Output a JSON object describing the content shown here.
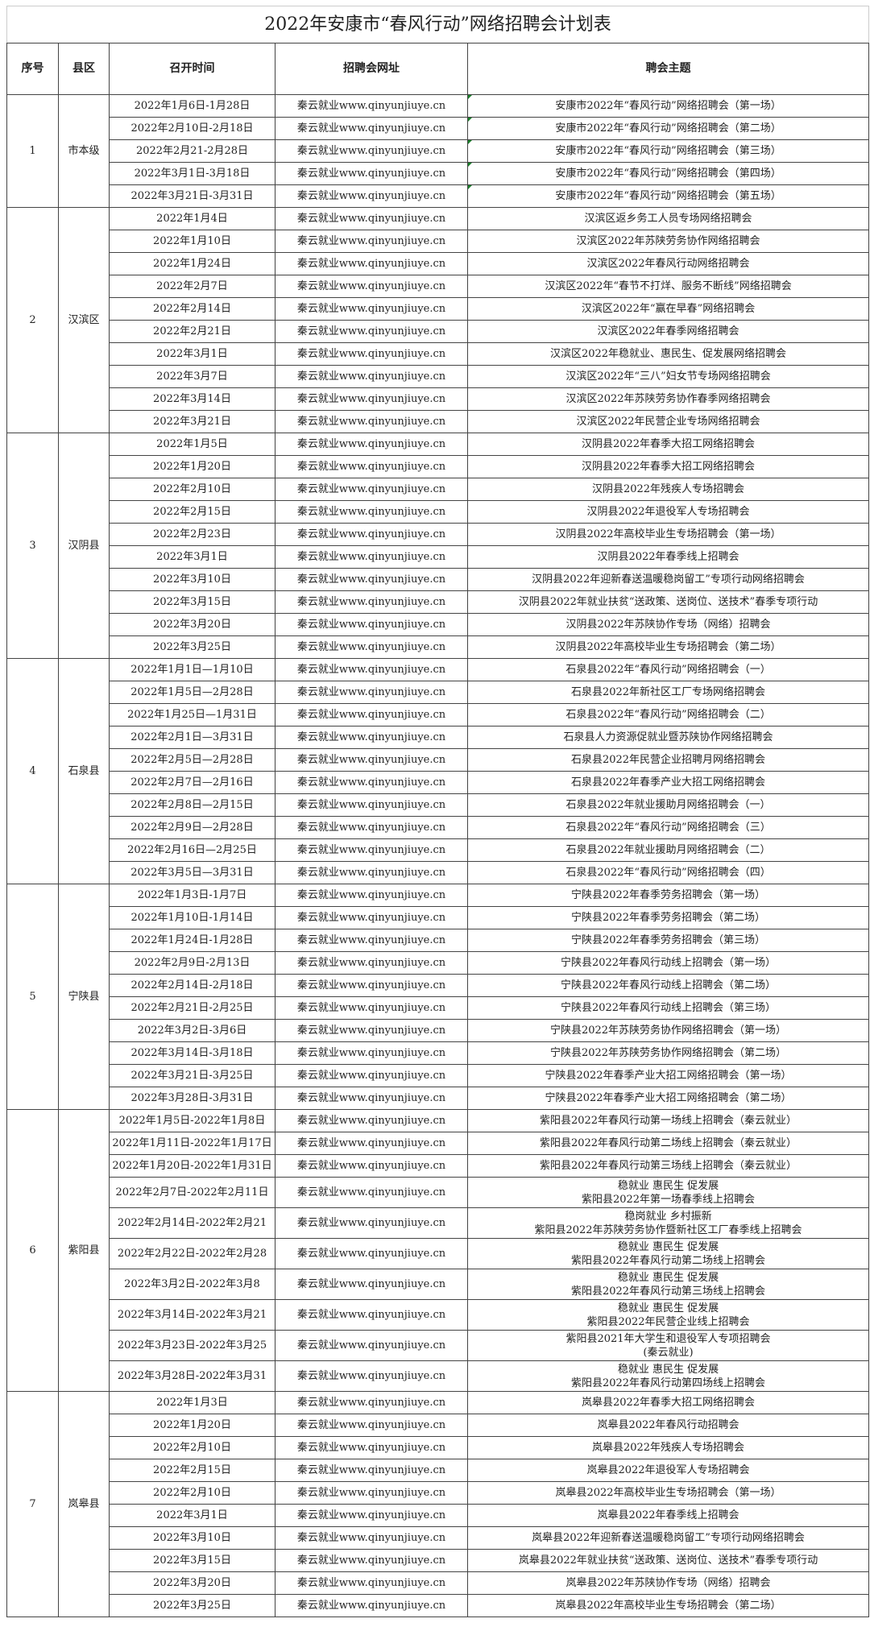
{
  "title": "2022年安康市“春风行动”网络招聘会计划表",
  "headers": [
    "序号",
    "县区",
    "召开时间",
    "招聘会网址",
    "聘会主题"
  ],
  "groups": [
    {
      "no": "1",
      "district": "市本级",
      "rows": [
        {
          "time": "2022年1月6日-1月28日",
          "site": "秦云就业www.qinyunjiuye.cn",
          "theme": [
            "安康市2022年“春风行动”网络招聘会（第一场）"
          ]
        },
        {
          "time": "2022年2月10日-2月18日",
          "site": "秦云就业www.qinyunjiuye.cn",
          "theme": [
            "安康市2022年“春风行动”网络招聘会（第二场）"
          ]
        },
        {
          "time": "2022年2月21-2月28日",
          "site": "秦云就业www.qinyunjiuye.cn",
          "theme": [
            "安康市2022年“春风行动”网络招聘会（第三场）"
          ]
        },
        {
          "time": "2022年3月1日-3月18日",
          "site": "秦云就业www.qinyunjiuye.cn",
          "theme": [
            "安康市2022年“春风行动”网络招聘会（第四场）"
          ]
        },
        {
          "time": "2022年3月21日-3月31日",
          "site": "秦云就业www.qinyunjiuye.cn",
          "theme": [
            "安康市2022年“春风行动”网络招聘会（第五场）"
          ]
        }
      ]
    },
    {
      "no": "2",
      "district": "汉滨区",
      "rows": [
        {
          "time": "2022年1月4日",
          "site": "秦云就业www.qinyunjiuye.cn",
          "theme": [
            "汉滨区返乡务工人员专场网络招聘会"
          ]
        },
        {
          "time": "2022年1月10日",
          "site": "秦云就业www.qinyunjiuye.cn",
          "theme": [
            "汉滨区2022年苏陕劳务协作网络招聘会"
          ]
        },
        {
          "time": "2022年1月24日",
          "site": "秦云就业www.qinyunjiuye.cn",
          "theme": [
            "汉滨区2022年春风行动网络招聘会"
          ]
        },
        {
          "time": "2022年2月7日",
          "site": "秦云就业www.qinyunjiuye.cn",
          "theme": [
            "汉滨区2022年“春节不打烊、服务不断线”网络招聘会"
          ]
        },
        {
          "time": "2022年2月14日",
          "site": "秦云就业www.qinyunjiuye.cn",
          "theme": [
            "汉滨区2022年“赢在早春”网络招聘会"
          ]
        },
        {
          "time": "2022年2月21日",
          "site": "秦云就业www.qinyunjiuye.cn",
          "theme": [
            "汉滨区2022年春季网络招聘会"
          ]
        },
        {
          "time": "2022年3月1日",
          "site": "秦云就业www.qinyunjiuye.cn",
          "theme": [
            "汉滨区2022年稳就业、惠民生、促发展网络招聘会"
          ]
        },
        {
          "time": "2022年3月7日",
          "site": "秦云就业www.qinyunjiuye.cn",
          "theme": [
            "汉滨区2022年“三八”妇女节专场网络招聘会"
          ]
        },
        {
          "time": "2022年3月14日",
          "site": "秦云就业www.qinyunjiuye.cn",
          "theme": [
            "汉滨区2022年苏陕劳务协作春季网络招聘会"
          ]
        },
        {
          "time": "2022年3月21日",
          "site": "秦云就业www.qinyunjiuye.cn",
          "theme": [
            "汉滨区2022年民营企业专场网络招聘会"
          ]
        }
      ]
    },
    {
      "no": "3",
      "district": "汉阴县",
      "rows": [
        {
          "time": "2022年1月5日",
          "site": "秦云就业www.qinyunjiuye.cn",
          "theme": [
            "汉阴县2022年春季大招工网络招聘会"
          ]
        },
        {
          "time": "2022年1月20日",
          "site": "秦云就业www.qinyunjiuye.cn",
          "theme": [
            "汉阴县2022年春季大招工网络招聘会"
          ]
        },
        {
          "time": "2022年2月10日",
          "site": "秦云就业www.qinyunjiuye.cn",
          "theme": [
            "汉阴县2022年残疾人专场招聘会"
          ]
        },
        {
          "time": "2022年2月15日",
          "site": "秦云就业www.qinyunjiuye.cn",
          "theme": [
            "汉阴县2022年退役军人专场招聘会"
          ]
        },
        {
          "time": "2022年2月23日",
          "site": "秦云就业www.qinyunjiuye.cn",
          "theme": [
            "汉阴县2022年高校毕业生专场招聘会（第一场）"
          ]
        },
        {
          "time": "2022年3月1日",
          "site": "秦云就业www.qinyunjiuye.cn",
          "theme": [
            "汉阴县2022年春季线上招聘会"
          ]
        },
        {
          "time": "2022年3月10日",
          "site": "秦云就业www.qinyunjiuye.cn",
          "theme": [
            "汉阴县2022年迎新春送温暖稳岗留工”专项行动网络招聘会"
          ]
        },
        {
          "time": "2022年3月15日",
          "site": "秦云就业www.qinyunjiuye.cn",
          "theme": [
            "汉阴县2022年就业扶贫“送政策、送岗位、送技术”春季专项行动"
          ]
        },
        {
          "time": "2022年3月20日",
          "site": "秦云就业www.qinyunjiuye.cn",
          "theme": [
            "汉阴县2022年苏陕协作专场（网络）招聘会"
          ]
        },
        {
          "time": "2022年3月25日",
          "site": "秦云就业www.qinyunjiuye.cn",
          "theme": [
            "汉阴县2022年高校毕业生专场招聘会（第二场）"
          ]
        }
      ]
    },
    {
      "no": "4",
      "district": "石泉县",
      "rows": [
        {
          "time": "2022年1月1日—1月10日",
          "site": "秦云就业www.qinyunjiuye.cn",
          "theme": [
            "石泉县2022年“春风行动”网络招聘会（一）"
          ]
        },
        {
          "time": "2022年1月5日—2月28日",
          "site": "秦云就业www.qinyunjiuye.cn",
          "theme": [
            "石泉县2022年新社区工厂专场网络招聘会"
          ]
        },
        {
          "time": "2022年1月25日—1月31日",
          "site": "秦云就业www.qinyunjiuye.cn",
          "theme": [
            "石泉县2022年“春风行动”网络招聘会（二）"
          ]
        },
        {
          "time": "2022年2月1日—3月31日",
          "site": "秦云就业www.qinyunjiuye.cn",
          "theme": [
            "石泉县人力资源促就业暨苏陕协作网络招聘会"
          ]
        },
        {
          "time": "2022年2月5日—2月28日",
          "site": "秦云就业www.qinyunjiuye.cn",
          "theme": [
            "石泉县2022年民营企业招聘月网络招聘会"
          ]
        },
        {
          "time": "2022年2月7日—2月16日",
          "site": "秦云就业www.qinyunjiuye.cn",
          "theme": [
            "石泉县2022年春季产业大招工网络招聘会"
          ]
        },
        {
          "time": "2022年2月8日—2月15日",
          "site": "秦云就业www.qinyunjiuye.cn",
          "theme": [
            "石泉县2022年就业援助月网络招聘会（一）"
          ]
        },
        {
          "time": "2022年2月9日—2月28日",
          "site": "秦云就业www.qinyunjiuye.cn",
          "theme": [
            "石泉县2022年“春风行动”网络招聘会（三）"
          ]
        },
        {
          "time": "2022年2月16日—2月25日",
          "site": "秦云就业www.qinyunjiuye.cn",
          "theme": [
            "石泉县2022年就业援助月网络招聘会（二）"
          ]
        },
        {
          "time": "2022年3月5日—3月31日",
          "site": "秦云就业www.qinyunjiuye.cn",
          "theme": [
            "石泉县2022年“春风行动”网络招聘会（四）"
          ]
        }
      ]
    },
    {
      "no": "5",
      "district": "宁陕县",
      "rows": [
        {
          "time": "2022年1月3日-1月7日",
          "site": "秦云就业www.qinyunjiuye.cn",
          "theme": [
            "宁陕县2022年春季劳务招聘会（第一场）"
          ]
        },
        {
          "time": "2022年1月10日-1月14日",
          "site": "秦云就业www.qinyunjiuye.cn",
          "theme": [
            "宁陕县2022年春季劳务招聘会（第二场）"
          ]
        },
        {
          "time": "2022年1月24日-1月28日",
          "site": "秦云就业www.qinyunjiuye.cn",
          "theme": [
            "宁陕县2022年春季劳务招聘会（第三场）"
          ]
        },
        {
          "time": "2022年2月9日-2月13日",
          "site": "秦云就业www.qinyunjiuye.cn",
          "theme": [
            "宁陕县2022年春风行动线上招聘会（第一场）"
          ]
        },
        {
          "time": "2022年2月14日-2月18日",
          "site": "秦云就业www.qinyunjiuye.cn",
          "theme": [
            "宁陕县2022年春风行动线上招聘会（第二场）"
          ]
        },
        {
          "time": "2022年2月21日-2月25日",
          "site": "秦云就业www.qinyunjiuye.cn",
          "theme": [
            "宁陕县2022年春风行动线上招聘会（第三场）"
          ]
        },
        {
          "time": "2022年3月2日-3月6日",
          "site": "秦云就业www.qinyunjiuye.cn",
          "theme": [
            "宁陕县2022年苏陕劳务协作网络招聘会（第一场）"
          ]
        },
        {
          "time": "2022年3月14日-3月18日",
          "site": "秦云就业www.qinyunjiuye.cn",
          "theme": [
            "宁陕县2022年苏陕劳务协作网络招聘会（第二场）"
          ]
        },
        {
          "time": "2022年3月21日-3月25日",
          "site": "秦云就业www.qinyunjiuye.cn",
          "theme": [
            "宁陕县2022年春季产业大招工网络招聘会（第一场）"
          ]
        },
        {
          "time": "2022年3月28日-3月31日",
          "site": "秦云就业www.qinyunjiuye.cn",
          "theme": [
            "宁陕县2022年春季产业大招工网络招聘会（第二场）"
          ]
        }
      ]
    },
    {
      "no": "6",
      "district": "紫阳县",
      "rows": [
        {
          "time": "2022年1月5日-2022年1月8日",
          "site": "秦云就业www.qinyunjiuye.cn",
          "theme": [
            "紫阳县2022年春风行动第一场线上招聘会（秦云就业）"
          ]
        },
        {
          "time": "2022年1月11日-2022年1月17日",
          "site": "秦云就业www.qinyunjiuye.cn",
          "theme": [
            "紫阳县2022年春风行动第二场线上招聘会（秦云就业）"
          ]
        },
        {
          "time": "2022年1月20日-2022年1月31日",
          "site": "秦云就业www.qinyunjiuye.cn",
          "theme": [
            "紫阳县2022年春风行动第三场线上招聘会（秦云就业）"
          ]
        },
        {
          "time": "2022年2月7日-2022年2月11日",
          "site": "秦云就业www.qinyunjiuye.cn",
          "theme": [
            "稳就业 惠民生 促发展",
            "紫阳县2022年第一场春季线上招聘会"
          ]
        },
        {
          "time": "2022年2月14日-2022年2月21",
          "site": "秦云就业www.qinyunjiuye.cn",
          "theme": [
            "稳岗就业 乡村振新",
            "紫阳县2022年苏陕劳务协作暨新社区工厂春季线上招聘会"
          ]
        },
        {
          "time": "2022年2月22日-2022年2月28",
          "site": "秦云就业www.qinyunjiuye.cn",
          "theme": [
            "稳就业 惠民生 促发展",
            "紫阳县2022年春风行动第二场线上招聘会"
          ]
        },
        {
          "time": "2022年3月2日-2022年3月8",
          "site": "秦云就业www.qinyunjiuye.cn",
          "theme": [
            "稳就业 惠民生 促发展",
            "紫阳县2022年春风行动第三场线上招聘会"
          ]
        },
        {
          "time": "2022年3月14日-2022年3月21",
          "site": "秦云就业www.qinyunjiuye.cn",
          "theme": [
            "稳就业 惠民生 促发展",
            "紫阳县2022年民营企业线上招聘会"
          ]
        },
        {
          "time": "2022年3月23日-2022年3月25",
          "site": "秦云就业www.qinyunjiuye.cn",
          "theme": [
            "紫阳县2021年大学生和退役军人专项招聘会",
            "(秦云就业)"
          ]
        },
        {
          "time": "2022年3月28日-2022年3月31",
          "site": "秦云就业www.qinyunjiuye.cn",
          "theme": [
            "稳就业 惠民生 促发展",
            "紫阳县2022年春风行动第四场线上招聘会"
          ]
        }
      ]
    },
    {
      "no": "7",
      "district": "岚皋县",
      "rows": [
        {
          "time": "2022年1月3日",
          "site": "秦云就业www.qinyunjiuye.cn",
          "theme": [
            "岚皋县2022年春季大招工网络招聘会"
          ]
        },
        {
          "time": "2022年1月20日",
          "site": "秦云就业www.qinyunjiuye.cn",
          "theme": [
            "岚皋县2022年春风行动招聘会"
          ]
        },
        {
          "time": "2022年2月10日",
          "site": "秦云就业www.qinyunjiuye.cn",
          "theme": [
            "岚皋县2022年残疾人专场招聘会"
          ]
        },
        {
          "time": "2022年2月15日",
          "site": "秦云就业www.qinyunjiuye.cn",
          "theme": [
            "岚皋县2022年退役军人专场招聘会"
          ]
        },
        {
          "time": "2022年2月10日",
          "site": "秦云就业www.qinyunjiuye.cn",
          "theme": [
            "岚皋县2022年高校毕业生专场招聘会（第一场）"
          ]
        },
        {
          "time": "2022年3月1日",
          "site": "秦云就业www.qinyunjiuye.cn",
          "theme": [
            "岚皋县2022年春季线上招聘会"
          ]
        },
        {
          "time": "2022年3月10日",
          "site": "秦云就业www.qinyunjiuye.cn",
          "theme": [
            "岚皋县2022年迎新春送温暖稳岗留工”专项行动网络招聘会"
          ]
        },
        {
          "time": "2022年3月15日",
          "site": "秦云就业www.qinyunjiuye.cn",
          "theme": [
            "岚皋县2022年就业扶贫“送政策、送岗位、送技术”春季专项行动"
          ]
        },
        {
          "time": "2022年3月20日",
          "site": "秦云就业www.qinyunjiuye.cn",
          "theme": [
            "岚皋县2022年苏陕协作专场（网络）招聘会"
          ]
        },
        {
          "time": "2022年3月25日",
          "site": "秦云就业www.qinyunjiuye.cn",
          "theme": [
            "岚皋县2022年高校毕业生专场招聘会（第二场）"
          ]
        }
      ]
    }
  ],
  "colors": {
    "border": "#444444",
    "comment_marker": "#1a7f2a"
  }
}
